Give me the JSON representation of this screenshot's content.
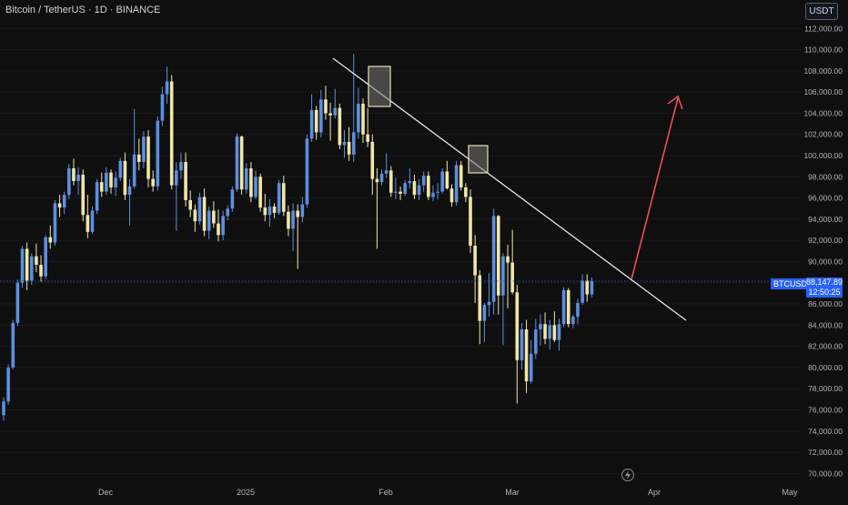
{
  "header": {
    "symbol_title": "Bitcoin / TetherUS · 1D · BINANCE",
    "currency": "USDT"
  },
  "price_marker": {
    "symbol": "BTCUSDT",
    "price": "88,147.89",
    "countdown": "12:50:25"
  },
  "colors": {
    "background": "#0f0f0f",
    "up": "#5b8fe0",
    "down": "#f0e6a8",
    "trendline": "#e6e6e6",
    "arrow": "#e8505b",
    "price_line": "#2962ff"
  },
  "icons": [
    "lightning-icon"
  ],
  "chart_data": {
    "type": "candlestick",
    "x_ticks": [
      "Dec",
      "2025",
      "Feb",
      "Mar",
      "Apr",
      "May"
    ],
    "y_ticks": [
      "70,000.00",
      "72,000.00",
      "74,000.00",
      "76,000.00",
      "78,000.00",
      "80,000.00",
      "82,000.00",
      "84,000.00",
      "86,000.00",
      "88,000.00",
      "90,000.00",
      "92,000.00",
      "94,000.00",
      "96,000.00",
      "98,000.00",
      "100,000.00",
      "102,000.00",
      "104,000.00",
      "106,000.00",
      "108,000.00",
      "110,000.00",
      "112,000.00"
    ],
    "ylim": [
      69000,
      114000
    ],
    "last_price": 88147.89,
    "candles_ohlc": [
      [
        75500,
        77200,
        75000,
        76800
      ],
      [
        76800,
        80300,
        76500,
        80000
      ],
      [
        80000,
        84500,
        79800,
        84200
      ],
      [
        84200,
        88300,
        83900,
        88000
      ],
      [
        88000,
        91500,
        87500,
        91200
      ],
      [
        91200,
        91800,
        87300,
        88200
      ],
      [
        88200,
        90800,
        87800,
        90500
      ],
      [
        90500,
        91700,
        89000,
        89700
      ],
      [
        89700,
        90600,
        88100,
        88600
      ],
      [
        88600,
        92500,
        88300,
        92300
      ],
      [
        92300,
        93400,
        91200,
        91800
      ],
      [
        91800,
        95800,
        91500,
        95500
      ],
      [
        95500,
        96300,
        94200,
        95100
      ],
      [
        95100,
        96600,
        94500,
        96300
      ],
      [
        96300,
        99200,
        95900,
        98800
      ],
      [
        98800,
        99700,
        97200,
        97600
      ],
      [
        97600,
        98900,
        96300,
        98200
      ],
      [
        98200,
        98700,
        93800,
        94400
      ],
      [
        94400,
        96300,
        92200,
        92800
      ],
      [
        92800,
        95200,
        92600,
        94800
      ],
      [
        94800,
        97800,
        94500,
        97500
      ],
      [
        97500,
        98400,
        96100,
        96600
      ],
      [
        96600,
        98900,
        96300,
        98400
      ],
      [
        98400,
        98700,
        96400,
        97000
      ],
      [
        97000,
        98500,
        96200,
        97900
      ],
      [
        97900,
        99800,
        97600,
        99500
      ],
      [
        99500,
        100300,
        95800,
        96300
      ],
      [
        96300,
        97800,
        93400,
        97100
      ],
      [
        97100,
        104400,
        96900,
        100100
      ],
      [
        100100,
        101600,
        98600,
        99400
      ],
      [
        99400,
        102300,
        98800,
        101800
      ],
      [
        101800,
        102400,
        97000,
        97800
      ],
      [
        97800,
        98600,
        96600,
        97100
      ],
      [
        97100,
        103700,
        96700,
        103300
      ],
      [
        103300,
        106500,
        102800,
        105800
      ],
      [
        105800,
        108400,
        104900,
        107000
      ],
      [
        107000,
        107600,
        96800,
        97200
      ],
      [
        97200,
        99400,
        92900,
        98600
      ],
      [
        98600,
        100300,
        97800,
        99400
      ],
      [
        99400,
        100300,
        95200,
        95800
      ],
      [
        95800,
        96700,
        94200,
        94900
      ],
      [
        94900,
        95400,
        92800,
        93800
      ],
      [
        93800,
        96500,
        93500,
        96100
      ],
      [
        96100,
        96900,
        92400,
        92900
      ],
      [
        92900,
        95200,
        92100,
        94800
      ],
      [
        94800,
        95700,
        93200,
        93600
      ],
      [
        93600,
        94900,
        91900,
        92500
      ],
      [
        92500,
        94800,
        92000,
        94300
      ],
      [
        94300,
        95300,
        93900,
        95000
      ],
      [
        95000,
        97100,
        94700,
        96800
      ],
      [
        96800,
        102100,
        96600,
        101800
      ],
      [
        101800,
        101900,
        96300,
        96800
      ],
      [
        96800,
        99300,
        96400,
        98800
      ],
      [
        98800,
        99400,
        95600,
        96100
      ],
      [
        96100,
        98600,
        95900,
        98000
      ],
      [
        98000,
        98300,
        94700,
        95100
      ],
      [
        95100,
        96400,
        93800,
        94400
      ],
      [
        94400,
        95900,
        93300,
        95200
      ],
      [
        95200,
        95500,
        94100,
        94600
      ],
      [
        94600,
        97700,
        94400,
        97400
      ],
      [
        97400,
        98100,
        94300,
        94700
      ],
      [
        94700,
        95300,
        92400,
        93100
      ],
      [
        93100,
        95500,
        91000,
        94800
      ],
      [
        94800,
        95400,
        89300,
        94200
      ],
      [
        94200,
        96100,
        93700,
        95400
      ],
      [
        95400,
        102000,
        95100,
        101600
      ],
      [
        101600,
        105800,
        101300,
        104300
      ],
      [
        104300,
        104700,
        101500,
        102200
      ],
      [
        102200,
        106200,
        101700,
        105300
      ],
      [
        105300,
        106600,
        103400,
        104000
      ],
      [
        104000,
        105000,
        101400,
        103800
      ],
      [
        103800,
        106300,
        103500,
        104500
      ],
      [
        104500,
        104900,
        100600,
        101000
      ],
      [
        101000,
        102400,
        99800,
        101300
      ],
      [
        101300,
        102700,
        99500,
        100100
      ],
      [
        100100,
        109600,
        99400,
        102200
      ],
      [
        102200,
        106400,
        101600,
        104900
      ],
      [
        104900,
        105400,
        101200,
        102000
      ],
      [
        102000,
        104500,
        100800,
        101300
      ],
      [
        101300,
        102000,
        96300,
        97800
      ],
      [
        97800,
        98800,
        91200,
        97500
      ],
      [
        97500,
        98700,
        97200,
        98300
      ],
      [
        98300,
        100200,
        97900,
        98600
      ],
      [
        98600,
        99000,
        96100,
        96500
      ],
      [
        96500,
        97900,
        95900,
        96600
      ],
      [
        96600,
        97100,
        95800,
        96400
      ],
      [
        96400,
        97700,
        96200,
        97400
      ],
      [
        97400,
        98800,
        96900,
        97600
      ],
      [
        97600,
        98200,
        95900,
        96300
      ],
      [
        96300,
        97800,
        95800,
        97200
      ],
      [
        97200,
        98500,
        96600,
        98100
      ],
      [
        98100,
        98500,
        95800,
        96100
      ],
      [
        96100,
        97200,
        95700,
        96500
      ],
      [
        96500,
        97400,
        95900,
        96600
      ],
      [
        96600,
        98800,
        96400,
        98500
      ],
      [
        98500,
        99500,
        96800,
        96900
      ],
      [
        96900,
        97300,
        95200,
        95600
      ],
      [
        95600,
        99500,
        95300,
        99100
      ],
      [
        99100,
        99500,
        96700,
        97000
      ],
      [
        97000,
        97400,
        95600,
        96100
      ],
      [
        96100,
        96800,
        90800,
        91500
      ],
      [
        91500,
        92500,
        86100,
        88700
      ],
      [
        88700,
        89200,
        82200,
        84400
      ],
      [
        84400,
        86100,
        82400,
        85900
      ],
      [
        85900,
        88900,
        84800,
        86200
      ],
      [
        86200,
        95000,
        85000,
        94300
      ],
      [
        94300,
        94400,
        85000,
        86800
      ],
      [
        86800,
        90800,
        82100,
        90500
      ],
      [
        90500,
        91600,
        85600,
        89900
      ],
      [
        89900,
        93000,
        86900,
        87100
      ],
      [
        87100,
        87800,
        76600,
        80700
      ],
      [
        80700,
        84200,
        79800,
        83600
      ],
      [
        83600,
        84500,
        77600,
        78700
      ],
      [
        78700,
        82600,
        78500,
        81300
      ],
      [
        81300,
        84600,
        80800,
        83600
      ],
      [
        83600,
        85000,
        82100,
        84100
      ],
      [
        84100,
        85200,
        82200,
        82700
      ],
      [
        82700,
        84500,
        81700,
        84000
      ],
      [
        84000,
        85300,
        82400,
        82600
      ],
      [
        82600,
        84600,
        81600,
        84100
      ],
      [
        84100,
        87600,
        83800,
        87300
      ],
      [
        87300,
        87500,
        83800,
        84100
      ],
      [
        84100,
        85000,
        83700,
        84800
      ],
      [
        84800,
        86500,
        84100,
        86100
      ],
      [
        86100,
        88800,
        85900,
        88200
      ],
      [
        88200,
        88800,
        86200,
        86900
      ],
      [
        86900,
        88500,
        86600,
        88147.89
      ]
    ],
    "trendline": {
      "from": [
        107000,
        "top"
      ],
      "to": [
        87000,
        "end"
      ]
    },
    "highlight_boxes": 2,
    "arrow_target": 106000
  }
}
